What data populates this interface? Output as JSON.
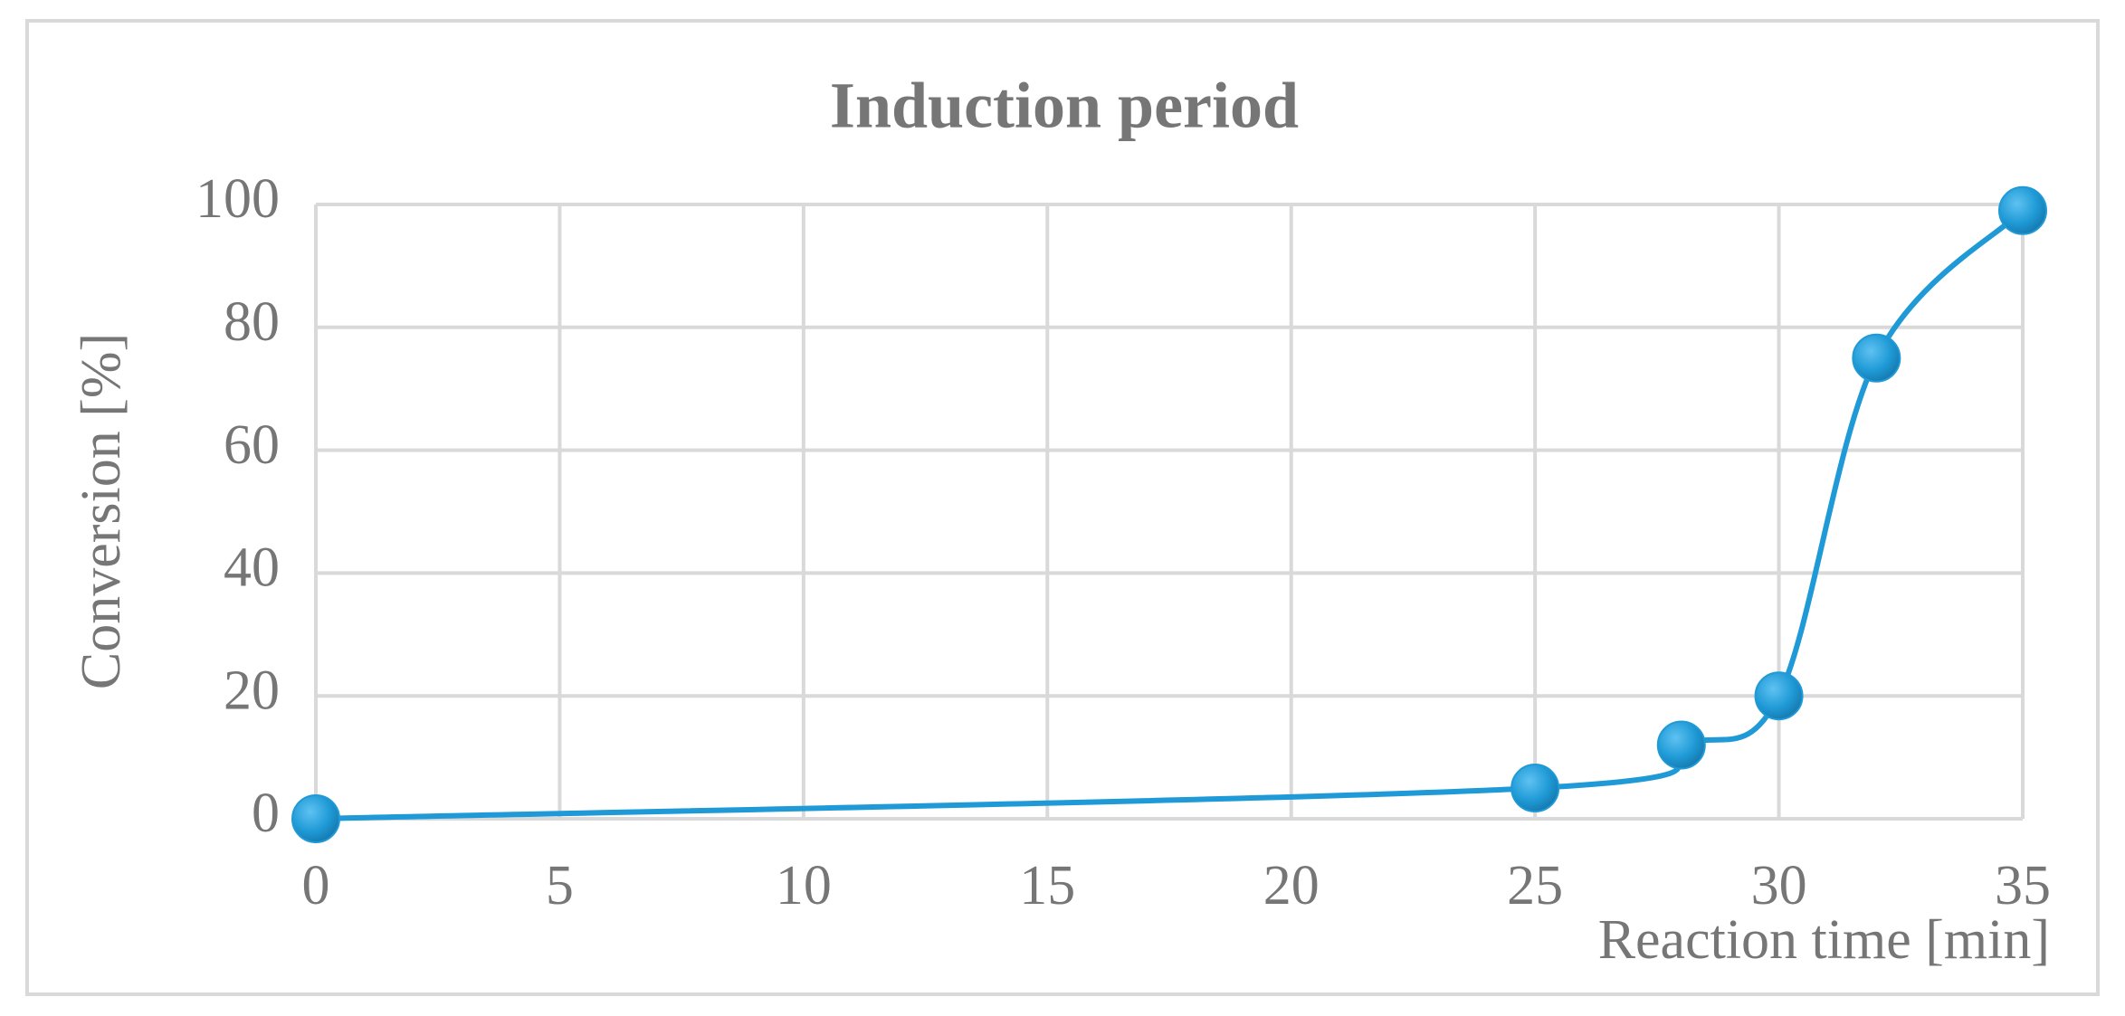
{
  "chart_data": {
    "type": "line",
    "title": "Induction period",
    "x_label": "Reaction time [min]",
    "y_label": "Conversion [%]",
    "x": [
      0,
      25,
      28,
      30,
      32,
      35
    ],
    "series": [
      {
        "name": "Conversion",
        "color": "#1f9ad6",
        "values": [
          0,
          5,
          12,
          20,
          75,
          99
        ]
      }
    ],
    "xlim": [
      0,
      35
    ],
    "xticks": [
      0,
      5,
      10,
      15,
      20,
      25,
      30,
      35
    ],
    "ylim": [
      0,
      100
    ],
    "yticks": [
      0,
      20,
      40,
      60,
      80,
      100
    ],
    "grid": true,
    "smooth": true
  }
}
